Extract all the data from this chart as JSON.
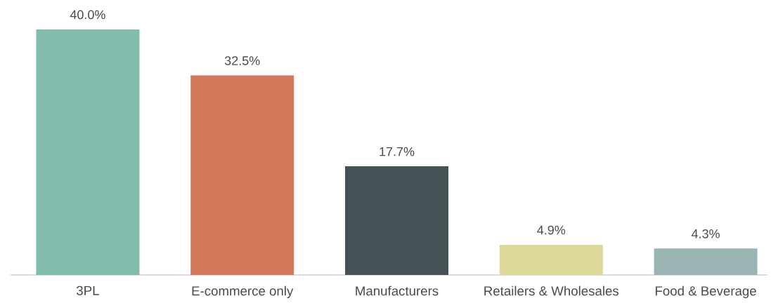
{
  "chart_data": {
    "type": "bar",
    "categories": [
      "3PL",
      "E-commerce only",
      "Manufacturers",
      "Retailers & Wholesales",
      "Food & Beverage"
    ],
    "values": [
      40.0,
      32.5,
      17.7,
      4.9,
      4.3
    ],
    "colors": [
      "#82bcad",
      "#d2795b",
      "#455256",
      "#dcd99a",
      "#9ab3b3"
    ],
    "value_labels": [
      "40.0%",
      "32.5%",
      "17.7%",
      "4.9%",
      "4.3%"
    ]
  }
}
